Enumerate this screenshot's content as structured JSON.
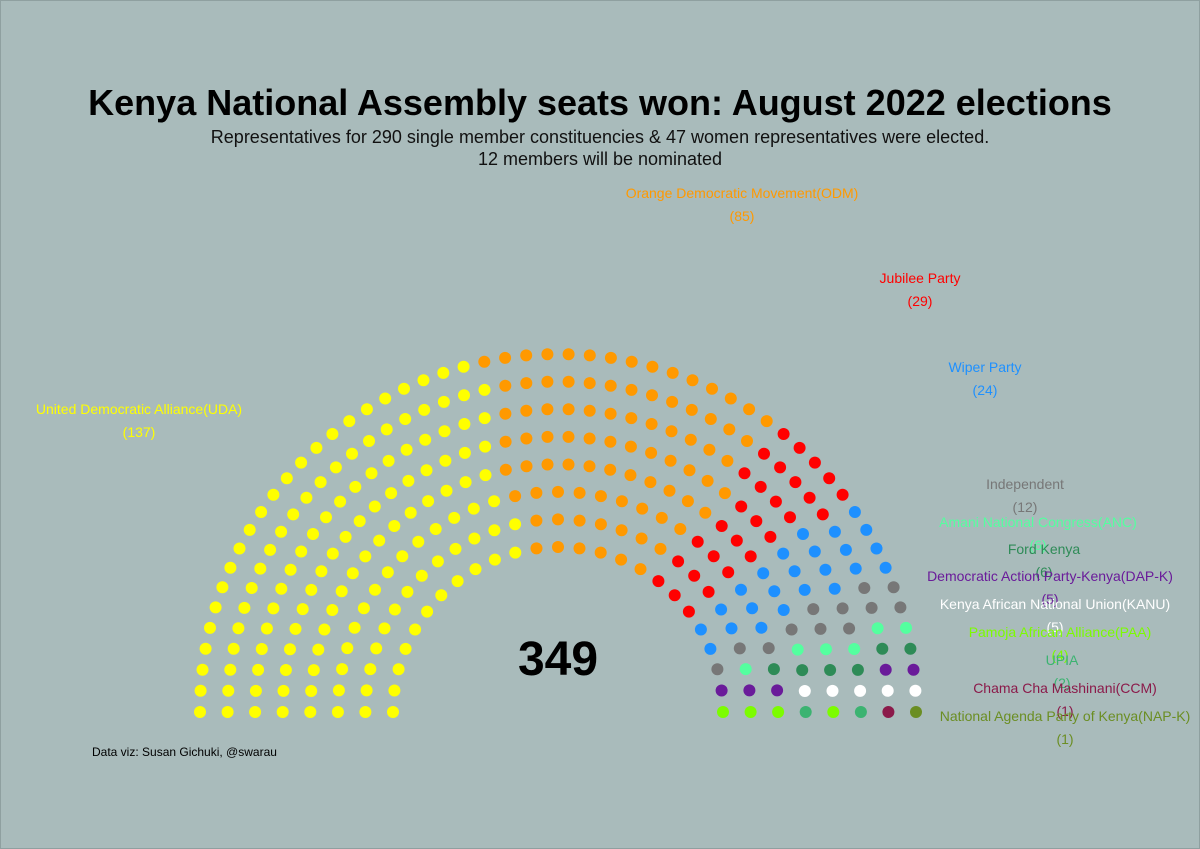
{
  "title": "Kenya National Assembly seats won: August 2022 elections",
  "subtitle_line1": "Representatives for 290 single member constituencies & 47 women representatives were elected.",
  "subtitle_line2": "12 members will be nominated",
  "total_seats": "349",
  "credit": "Data viz: Susan Gichuki, @swarau",
  "chart_data": {
    "type": "parliament",
    "title": "Kenya National Assembly seats won: August 2022 elections",
    "total": 349,
    "parties": [
      {
        "name": "United Democratic Alliance(UDA)",
        "count_label": "(137)",
        "seats": 137,
        "color": "#ffff00"
      },
      {
        "name": "Orange Democratic Movement(ODM)",
        "count_label": "(85)",
        "seats": 85,
        "color": "#ff9900"
      },
      {
        "name": "Jubilee Party",
        "count_label": "(29)",
        "seats": 29,
        "color": "#ff0000"
      },
      {
        "name": "Wiper Party",
        "count_label": "(24)",
        "seats": 24,
        "color": "#1e90ff"
      },
      {
        "name": "Independent",
        "count_label": "(12)",
        "seats": 12,
        "color": "#777777"
      },
      {
        "name": "Amani National Congress(ANC)",
        "count_label": "(6)",
        "seats": 6,
        "color": "#54ff9f"
      },
      {
        "name": "Ford Kenya",
        "count_label": "(6)",
        "seats": 6,
        "color": "#2e8b57"
      },
      {
        "name": "Democratic Action Party-Kenya(DAP-K)",
        "count_label": "(5)",
        "seats": 5,
        "color": "#6a1b9a"
      },
      {
        "name": "Kenya African National Union(KANU)",
        "count_label": "(5)",
        "seats": 5,
        "color": "#ffffff"
      },
      {
        "name": "Pamoja African Alliance(PAA)",
        "count_label": "(4)",
        "seats": 4,
        "color": "#7cfc00"
      },
      {
        "name": "UPIA",
        "count_label": "(2)",
        "seats": 2,
        "color": "#3cb371"
      },
      {
        "name": "Chama Cha Mashinani(CCM)",
        "count_label": "(1)",
        "seats": 1,
        "color": "#8b1a4a"
      },
      {
        "name": "National Agenda Party of Kenya(NAP-K)",
        "count_label": "(1)",
        "seats": 1,
        "color": "#6b8e23"
      }
    ]
  }
}
